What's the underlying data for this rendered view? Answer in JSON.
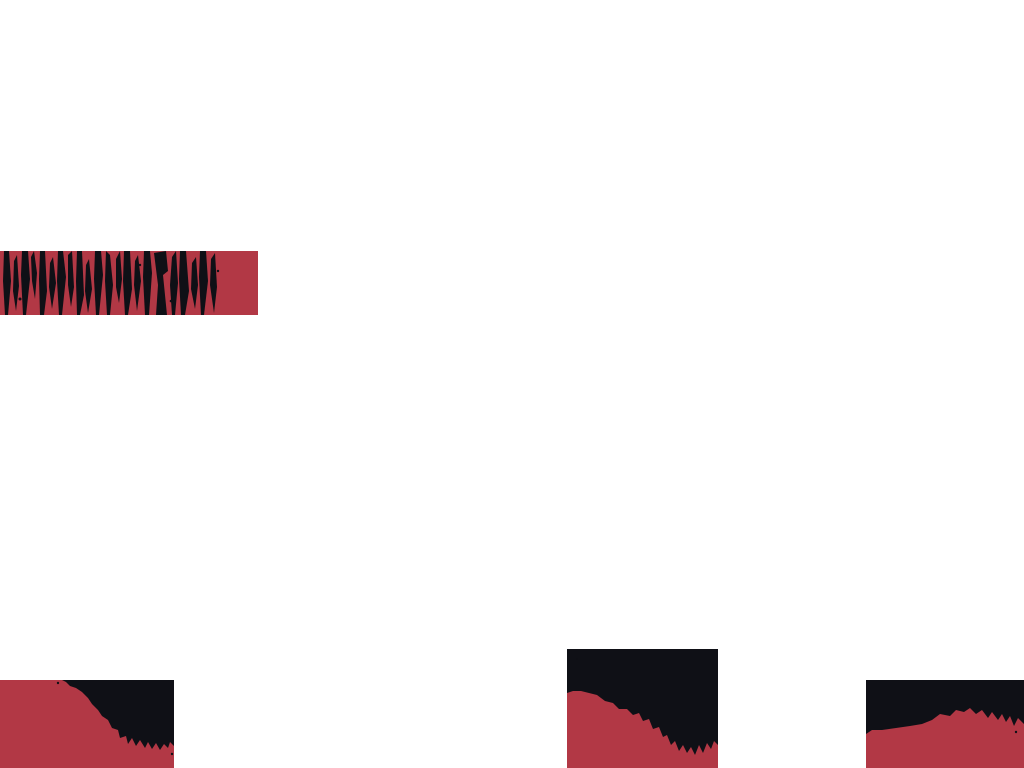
{
  "colors": {
    "background": "#ffffff",
    "red": "#b23845",
    "black": "#0f1016"
  },
  "elements": {
    "banner": {
      "icon": "grunge-stripes-banner"
    },
    "tiles": [
      {
        "icon": "grunge-corner-tile"
      },
      {
        "icon": "grunge-slope-tile"
      },
      {
        "icon": "grunge-edge-tile"
      }
    ]
  }
}
